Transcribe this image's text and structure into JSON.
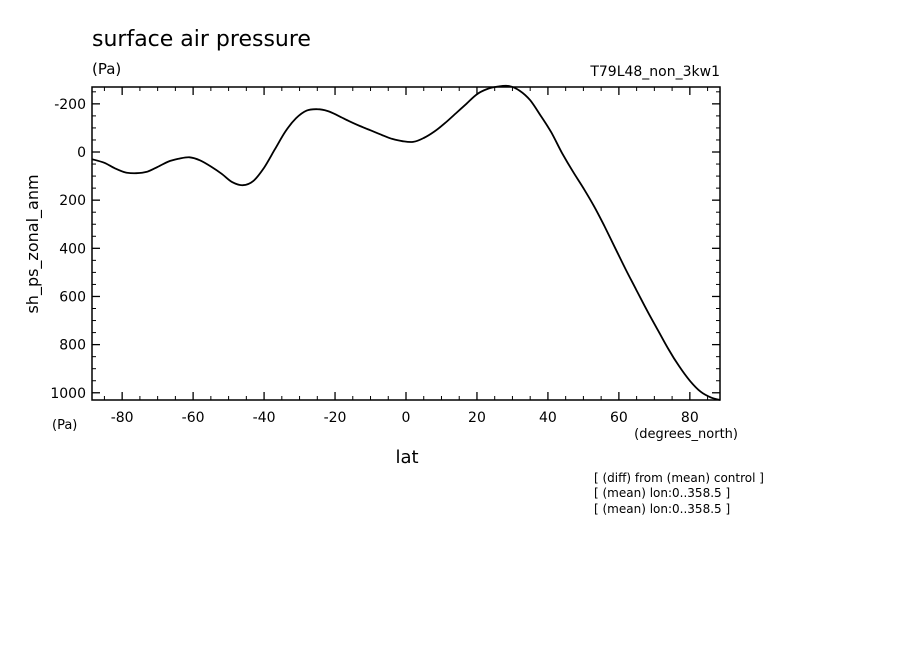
{
  "chart_data": {
    "type": "line",
    "title": "surface air pressure",
    "units_top": "(Pa)",
    "units_bottom": "(Pa)",
    "experiment": "T79L48_non_3kw1",
    "xlabel": "lat",
    "xunits": "(degrees_north)",
    "ylabel": "sh_ps_zonal_anm",
    "xlim": [
      -88.5,
      88.5
    ],
    "ylim": [
      -270,
      1030
    ],
    "y_inverted": true,
    "x_ticks": [
      -80,
      -60,
      -40,
      -20,
      0,
      20,
      40,
      60,
      80
    ],
    "x_tick_labels": [
      "-80",
      "-60",
      "-40",
      "-20",
      "0",
      "20",
      "40",
      "60",
      "80"
    ],
    "y_ticks": [
      -200,
      0,
      200,
      400,
      600,
      800,
      1000
    ],
    "y_tick_labels": [
      "-200",
      "0",
      "200",
      "400",
      "600",
      "800",
      "1000"
    ],
    "grid": false,
    "notes": [
      "[ (diff) from (mean) control ]",
      "[ (mean) lon:0..358.5 ]",
      "[ (mean) lon:0..358.5 ]"
    ],
    "series": [
      {
        "x": [
          -88.5,
          -85,
          -82,
          -79,
          -76,
          -73,
          -70,
          -67,
          -64,
          -61,
          -58,
          -55,
          -52,
          -49,
          -46,
          -43,
          -40,
          -37,
          -34,
          -31,
          -28,
          -25,
          -22,
          -19,
          -16,
          -13,
          -10,
          -7,
          -4,
          -1,
          2,
          5,
          8,
          11,
          14,
          17,
          20,
          23,
          26,
          29,
          32,
          35,
          38,
          41,
          44,
          47,
          50,
          53,
          56,
          59,
          62,
          65,
          68,
          71,
          74,
          77,
          80,
          83,
          86,
          88.5
        ],
        "y": [
          30,
          45,
          68,
          85,
          88,
          82,
          62,
          40,
          28,
          22,
          35,
          60,
          90,
          125,
          138,
          120,
          65,
          -10,
          -85,
          -140,
          -172,
          -178,
          -170,
          -150,
          -128,
          -108,
          -90,
          -72,
          -55,
          -45,
          -42,
          -58,
          -85,
          -120,
          -160,
          -200,
          -240,
          -262,
          -272,
          -274,
          -255,
          -215,
          -150,
          -80,
          5,
          80,
          150,
          225,
          310,
          400,
          490,
          575,
          660,
          740,
          820,
          890,
          950,
          995,
          1020,
          1030
        ]
      }
    ]
  }
}
